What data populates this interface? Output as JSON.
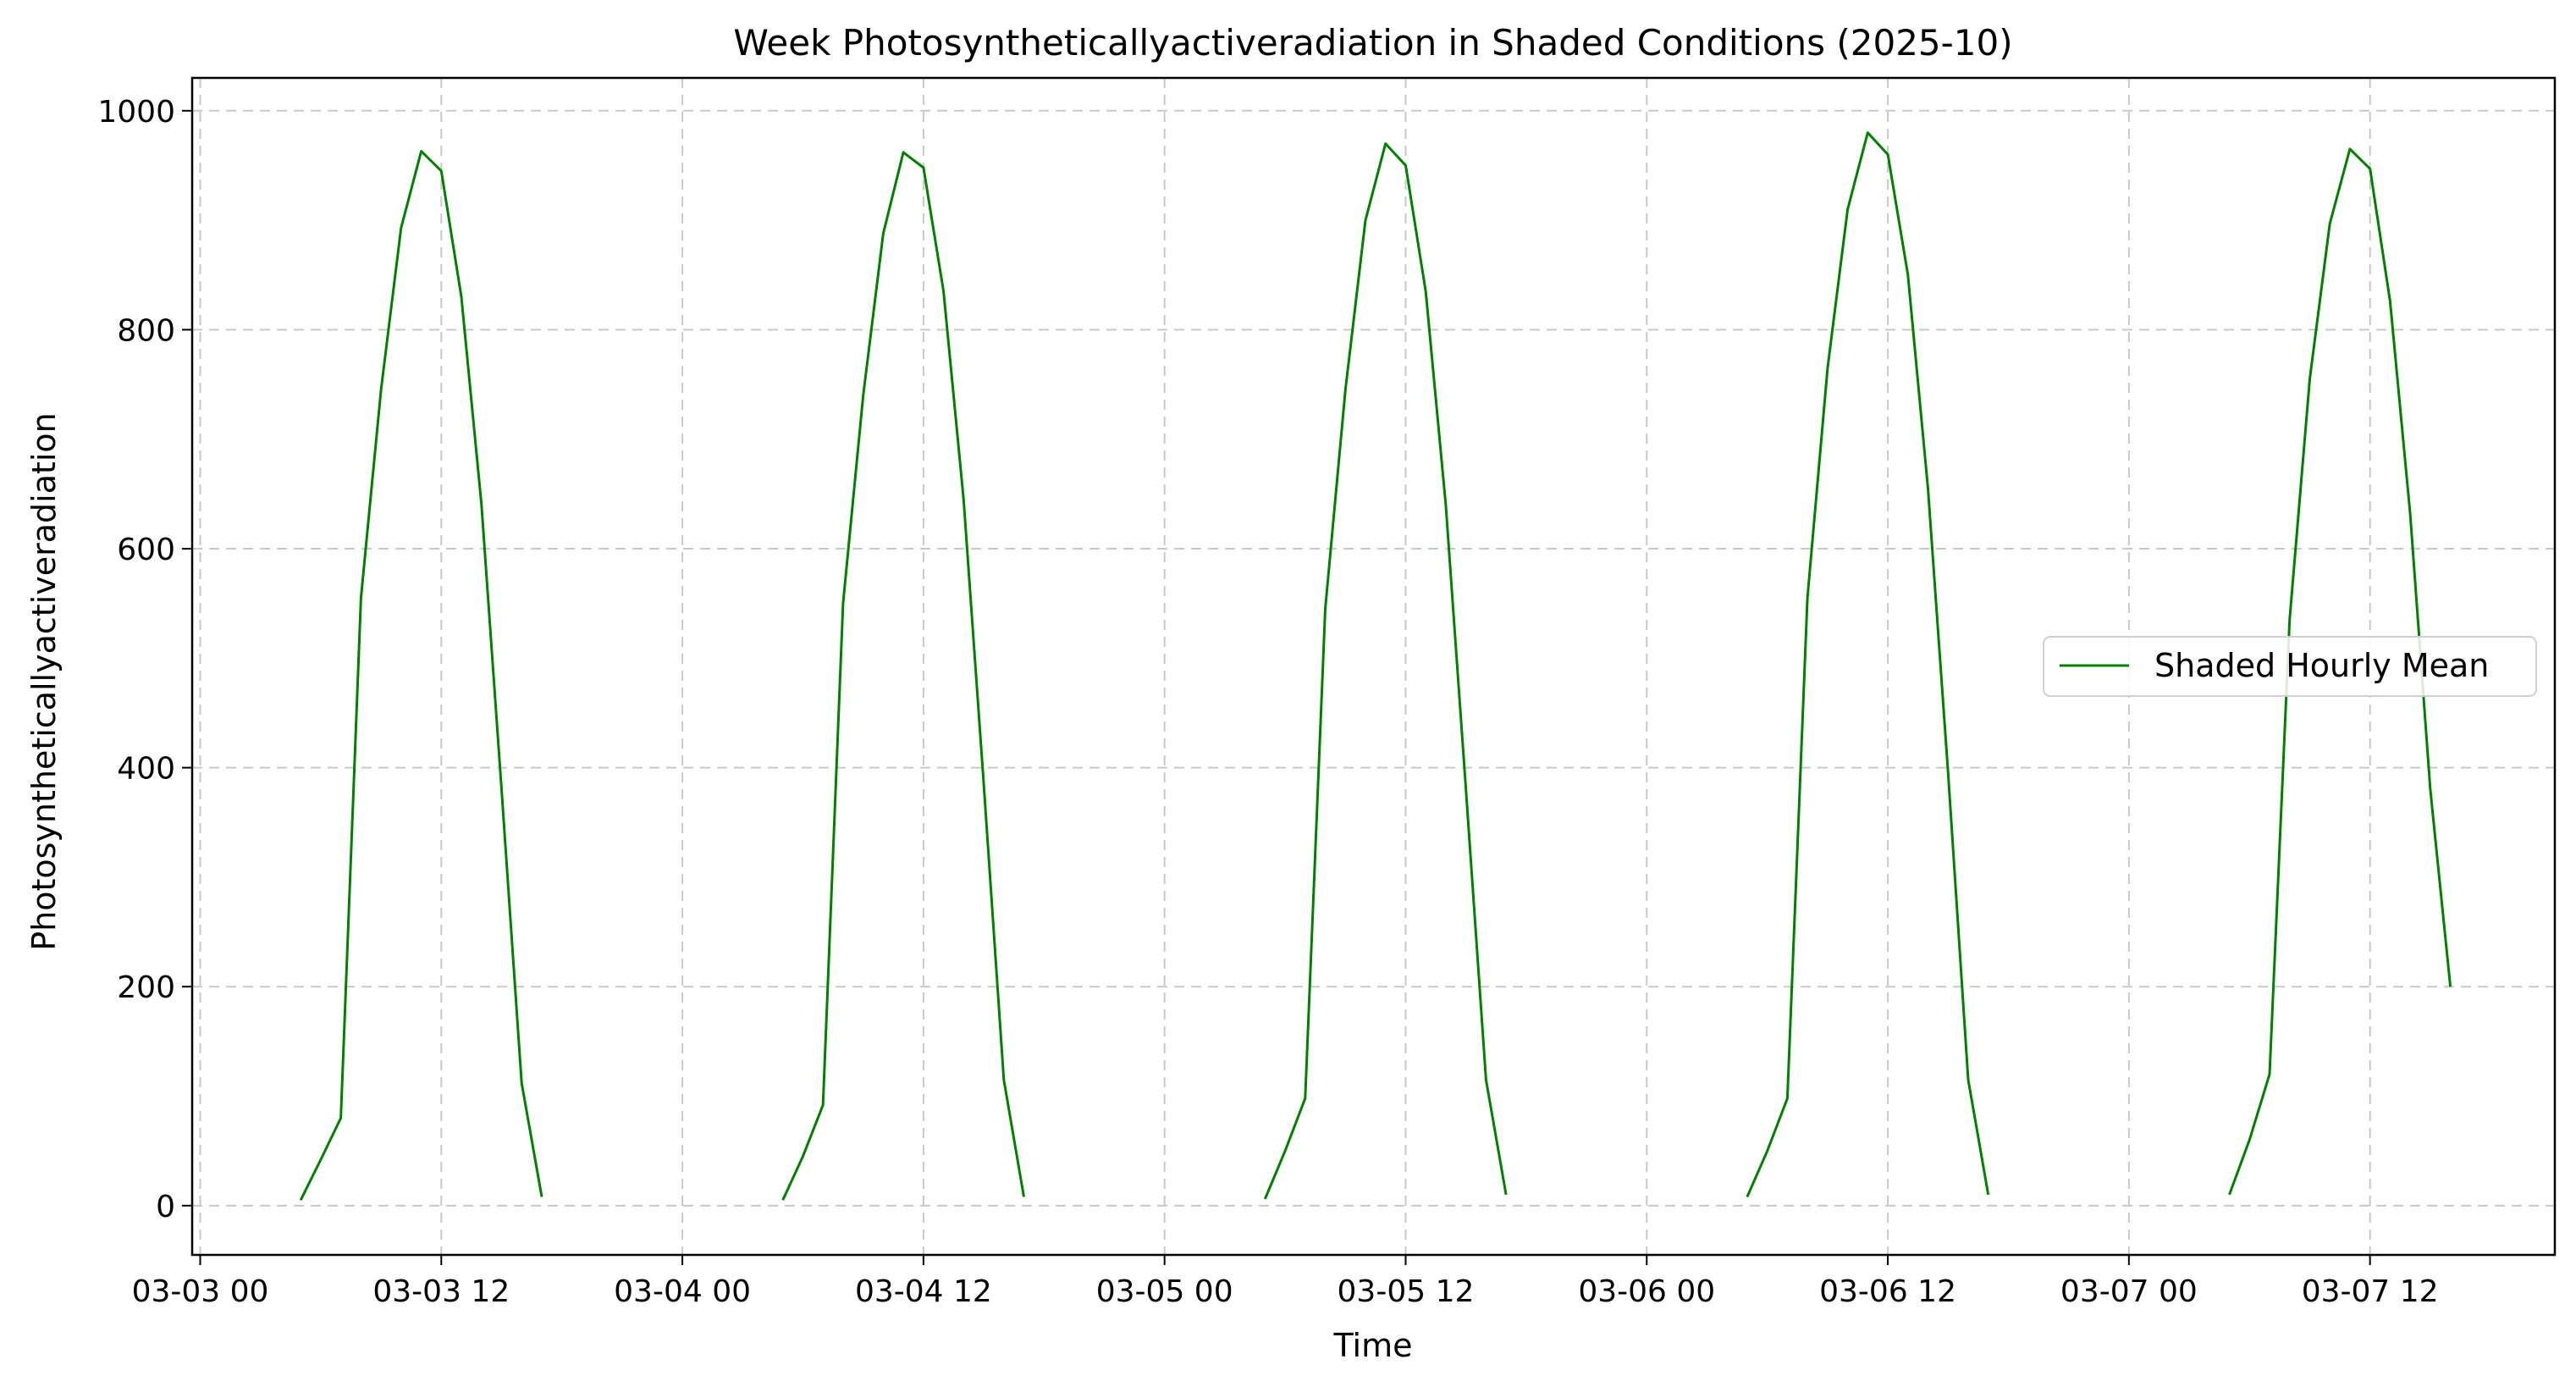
{
  "chart_data": {
    "type": "line",
    "title": "Week Photosyntheticallyactiveradiation in Shaded Conditions (2025-10)",
    "xlabel": "Time",
    "ylabel": "Photosyntheticallyactiveradiation",
    "x_unit": "hours since 03-03 00",
    "xlim": [
      -0.4,
      117.2
    ],
    "ylim": [
      -45,
      1030
    ],
    "yticks": [
      0,
      200,
      400,
      600,
      800,
      1000
    ],
    "xticks": [
      {
        "value": 0,
        "label": "03-03 00"
      },
      {
        "value": 12,
        "label": "03-03 12"
      },
      {
        "value": 24,
        "label": "03-04 00"
      },
      {
        "value": 36,
        "label": "03-04 12"
      },
      {
        "value": 48,
        "label": "03-05 00"
      },
      {
        "value": 60,
        "label": "03-05 12"
      },
      {
        "value": 72,
        "label": "03-06 00"
      },
      {
        "value": 84,
        "label": "03-06 12"
      },
      {
        "value": 96,
        "label": "03-07 00"
      },
      {
        "value": 108,
        "label": "03-07 12"
      }
    ],
    "grid": true,
    "legend_position": "center-right",
    "series": [
      {
        "name": "Shaded Hourly Mean",
        "color": "#008000",
        "segments": [
          {
            "x": [
              5,
              6,
              7,
              8,
              9,
              10,
              11,
              12,
              13,
              14,
              15,
              16,
              17
            ],
            "y": [
              5,
              42,
              80,
              555,
              745,
              893,
              963,
              945,
              830,
              640,
              380,
              112,
              8
            ]
          },
          {
            "x": [
              29,
              30,
              31,
              32,
              33,
              34,
              35,
              36,
              37,
              38,
              39,
              40,
              41
            ],
            "y": [
              5,
              45,
              92,
              550,
              740,
              888,
              962,
              948,
              835,
              645,
              385,
              115,
              8
            ]
          },
          {
            "x": [
              53,
              54,
              55,
              56,
              57,
              58,
              59,
              60,
              61,
              62,
              63,
              64,
              65
            ],
            "y": [
              6,
              50,
              98,
              545,
              745,
              900,
              970,
              950,
              835,
              640,
              380,
              115,
              10
            ]
          },
          {
            "x": [
              77,
              78,
              79,
              80,
              81,
              82,
              83,
              84,
              85,
              86,
              87,
              88,
              89
            ],
            "y": [
              8,
              50,
              98,
              555,
              765,
              910,
              980,
              960,
              850,
              655,
              395,
              115,
              10
            ]
          },
          {
            "x": [
              101,
              102,
              103,
              104,
              105,
              106,
              107,
              108,
              109,
              110,
              111,
              112
            ],
            "y": [
              10,
              60,
              120,
              535,
              755,
              897,
              965,
              947,
              826,
              632,
              380,
              200
            ]
          }
        ]
      }
    ]
  }
}
